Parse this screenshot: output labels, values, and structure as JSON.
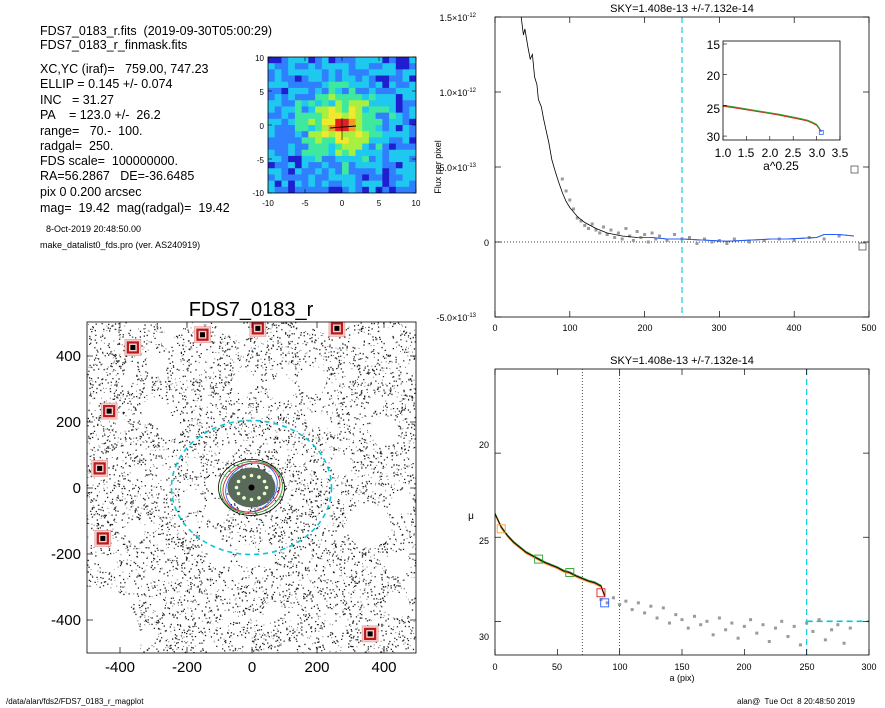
{
  "info": {
    "lines": [
      "FDS7_0183_r.fits  (2019-09-30T05:00:29)",
      "FDS7_0183_r_finmask.fits",
      "XC,YC (iraf)=   759.00, 747.23",
      "ELLIP = 0.145 +/- 0.074",
      "INC   = 31.27",
      "PA    = 123.0 +/-  26.2",
      "range=   70.-  100.",
      "radgal=  250.",
      "FDS scale=  100000000.",
      "RA=56.2867   DE=-36.6485",
      "pix 0 0.200 arcsec",
      "mag=  19.42  mag(radgal)=  19.42"
    ],
    "date_line": "8-Oct-2019 20:48:50.00",
    "script_line": "make_datalist0_fds.pro (ver. AS240919)"
  },
  "footer": {
    "path": "/data/alan/fds2/FDS7_0183_r_magplot",
    "stamp": "alan@  Tue Oct  8 20:48:50 2019"
  },
  "colors": {
    "profile": "#000000",
    "points": "#9a9a9a",
    "sky_line": "#00c8d8",
    "green": "#2aa02a",
    "red": "#e02020",
    "blue": "#2a60ff",
    "orange": "#f0a030",
    "mask": "#c01818"
  },
  "thumbnail": {
    "xticks": [
      "-10",
      "-5",
      "0",
      "5",
      "10"
    ],
    "yticks": [
      "10",
      "5",
      "0",
      "-5",
      "-10"
    ],
    "colormap": [
      "#1f1fcf",
      "#2f7fff",
      "#1fc8ef",
      "#3fe89f",
      "#a8f040",
      "#f2e82e",
      "#f49a22",
      "#e22020"
    ]
  },
  "image_panel": {
    "title": "FDS7_0183_r",
    "xticks": [
      "-400",
      "-200",
      "0",
      "200",
      "400"
    ],
    "yticks": [
      "400",
      "200",
      "0",
      "-200",
      "-400"
    ],
    "xlim": [
      -520,
      520
    ],
    "ylim": [
      -520,
      520
    ]
  },
  "chart_data": [
    {
      "type": "line",
      "title": "SKY=1.408e-13 +/-7.132e-14",
      "xlabel": "",
      "ylabel": "Flux per pixel",
      "xlim": [
        0,
        500
      ],
      "ylim": [
        -5e-13,
        1.5e-12
      ],
      "xticks": [
        "0",
        "100",
        "200",
        "300",
        "400",
        "500"
      ],
      "yticks": [
        {
          "base": "1.5×10",
          "exp": "-12"
        },
        {
          "base": "1.0×10",
          "exp": "-12"
        },
        {
          "base": "5.0×10",
          "exp": "-13"
        },
        {
          "base": "0",
          "exp": ""
        },
        {
          "base": "-5.0×10",
          "exp": "-13"
        }
      ],
      "sky_radius": 250,
      "series": [
        {
          "values": [
            [
              35,
              1.5e-12
            ],
            [
              38,
              1.38e-12
            ],
            [
              40,
              1.42e-12
            ],
            [
              44,
              1.3e-12
            ],
            [
              47,
              1.22e-12
            ],
            [
              50,
              1.25e-12
            ],
            [
              53,
              1.1e-12
            ],
            [
              56,
              1.05e-12
            ],
            [
              58,
              9.5e-13
            ],
            [
              62,
              9e-13
            ],
            [
              65,
              8.2e-13
            ],
            [
              68,
              7.5e-13
            ],
            [
              72,
              6.6e-13
            ],
            [
              76,
              5.5e-13
            ],
            [
              80,
              4.8e-13
            ],
            [
              85,
              4e-13
            ],
            [
              90,
              3.3e-13
            ],
            [
              95,
              2.7e-13
            ],
            [
              100,
              2.3e-13
            ],
            [
              110,
              1.7e-13
            ],
            [
              120,
              1.3e-13
            ],
            [
              135,
              9e-14
            ],
            [
              150,
              6e-14
            ],
            [
              170,
              4e-14
            ],
            [
              190,
              3e-14
            ],
            [
              210,
              3e-14
            ],
            [
              230,
              2e-14
            ],
            [
              250,
              2e-14
            ],
            [
              270,
              1.5e-14
            ],
            [
              290,
              1e-14
            ],
            [
              310,
              5e-15
            ],
            [
              330,
              1e-14
            ],
            [
              350,
              1.5e-14
            ],
            [
              370,
              2e-14
            ],
            [
              390,
              2e-14
            ],
            [
              410,
              2.5e-14
            ],
            [
              430,
              3e-14
            ],
            [
              440,
              5e-14
            ],
            [
              460,
              5e-14
            ],
            [
              480,
              4e-14
            ]
          ]
        }
      ],
      "points": [
        [
          90,
          4.2e-13
        ],
        [
          95,
          3.4e-13
        ],
        [
          100,
          2.8e-13
        ],
        [
          105,
          2.2e-13
        ],
        [
          110,
          1.6e-13
        ],
        [
          115,
          1.4e-13
        ],
        [
          120,
          1.1e-13
        ],
        [
          125,
          9e-14
        ],
        [
          130,
          1.2e-13
        ],
        [
          135,
          8e-14
        ],
        [
          140,
          6e-14
        ],
        [
          145,
          1e-13
        ],
        [
          150,
          5e-14
        ],
        [
          155,
          8e-14
        ],
        [
          160,
          3e-14
        ],
        [
          165,
          6e-14
        ],
        [
          170,
          2e-14
        ],
        [
          175,
          9e-14
        ],
        [
          180,
          4e-14
        ],
        [
          185,
          1e-14
        ],
        [
          190,
          7e-14
        ],
        [
          195,
          3e-14
        ],
        [
          200,
          5e-14
        ],
        [
          205,
          0.0
        ],
        [
          210,
          6e-14
        ],
        [
          215,
          2e-14
        ],
        [
          220,
          4e-14
        ],
        [
          230,
          1e-14
        ],
        [
          240,
          5e-14
        ],
        [
          250,
          2e-14
        ],
        [
          260,
          3e-14
        ],
        [
          270,
          -1e-14
        ],
        [
          280,
          2e-14
        ],
        [
          290,
          0.0
        ],
        [
          300,
          1e-14
        ],
        [
          310,
          -1e-14
        ],
        [
          320,
          2e-14
        ],
        [
          340,
          0.0
        ],
        [
          360,
          1e-14
        ],
        [
          380,
          2e-14
        ],
        [
          400,
          1e-14
        ],
        [
          420,
          3e-14
        ],
        [
          440,
          2e-14
        ],
        [
          460,
          4e-14
        ]
      ]
    },
    {
      "type": "line",
      "title": "",
      "xlabel": "a^0.25",
      "ylabel": "",
      "xlim": [
        1.0,
        3.5
      ],
      "ylim": [
        30,
        15
      ],
      "xticks": [
        "1.0",
        "1.5",
        "2.0",
        "2.5",
        "3.0",
        "3.5"
      ],
      "yticks": [
        "15",
        "20",
        "25",
        "30"
      ],
      "series": [
        {
          "values": [
            [
              1.0,
              25.0
            ],
            [
              1.2,
              25.2
            ],
            [
              1.4,
              25.45
            ],
            [
              1.6,
              25.7
            ],
            [
              1.8,
              25.95
            ],
            [
              2.0,
              26.2
            ],
            [
              2.2,
              26.45
            ],
            [
              2.4,
              26.75
            ],
            [
              2.6,
              27.05
            ],
            [
              2.8,
              27.4
            ],
            [
              2.9,
              27.7
            ],
            [
              3.0,
              28.1
            ],
            [
              3.05,
              28.6
            ],
            [
              3.1,
              29.2
            ]
          ]
        }
      ]
    },
    {
      "type": "scatter",
      "title": "SKY=1.408e-13 +/-7.132e-14",
      "xlabel": "a (pix)",
      "ylabel": "μ",
      "xlim": [
        0,
        300
      ],
      "ylim": [
        32,
        15
      ],
      "xticks": [
        "0",
        "50",
        "100",
        "150",
        "200",
        "250",
        "300"
      ],
      "yticks": [
        "20",
        "25",
        "30"
      ],
      "range_lines": [
        70,
        100
      ],
      "sky_radius": 250,
      "sky_level": 30.0,
      "series": [
        {
          "values": [
            [
              0,
              23.6
            ],
            [
              5,
              24.4
            ],
            [
              10,
              24.9
            ],
            [
              15,
              25.3
            ],
            [
              20,
              25.6
            ],
            [
              25,
              25.9
            ],
            [
              30,
              26.1
            ],
            [
              35,
              26.3
            ],
            [
              40,
              26.5
            ],
            [
              45,
              26.65
            ],
            [
              50,
              26.8
            ],
            [
              55,
              27.0
            ],
            [
              60,
              27.1
            ],
            [
              65,
              27.3
            ],
            [
              70,
              27.45
            ],
            [
              75,
              27.6
            ],
            [
              80,
              27.7
            ],
            [
              85,
              27.9
            ],
            [
              88,
              28.5
            ]
          ]
        }
      ],
      "points": [
        [
          85,
          28.7
        ],
        [
          90,
          28.9
        ],
        [
          95,
          28.6
        ],
        [
          100,
          29.0
        ],
        [
          105,
          28.8
        ],
        [
          110,
          29.3
        ],
        [
          115,
          28.9
        ],
        [
          120,
          29.5
        ],
        [
          125,
          29.1
        ],
        [
          130,
          29.8
        ],
        [
          135,
          29.2
        ],
        [
          140,
          30.1
        ],
        [
          145,
          29.6
        ],
        [
          150,
          29.9
        ],
        [
          155,
          30.4
        ],
        [
          160,
          29.7
        ],
        [
          165,
          30.2
        ],
        [
          170,
          30.0
        ],
        [
          175,
          30.8
        ],
        [
          180,
          29.8
        ],
        [
          185,
          30.5
        ],
        [
          190,
          30.1
        ],
        [
          195,
          31.0
        ],
        [
          200,
          30.3
        ],
        [
          205,
          29.9
        ],
        [
          210,
          30.7
        ],
        [
          215,
          30.2
        ],
        [
          220,
          31.2
        ],
        [
          225,
          30.4
        ],
        [
          230,
          30.0
        ],
        [
          235,
          30.9
        ],
        [
          240,
          30.3
        ],
        [
          245,
          31.4
        ],
        [
          250,
          30.1
        ],
        [
          255,
          30.6
        ],
        [
          260,
          29.9
        ],
        [
          265,
          31.1
        ],
        [
          270,
          30.5
        ],
        [
          275,
          30.2
        ],
        [
          280,
          31.3
        ],
        [
          285,
          30.4
        ]
      ]
    }
  ]
}
